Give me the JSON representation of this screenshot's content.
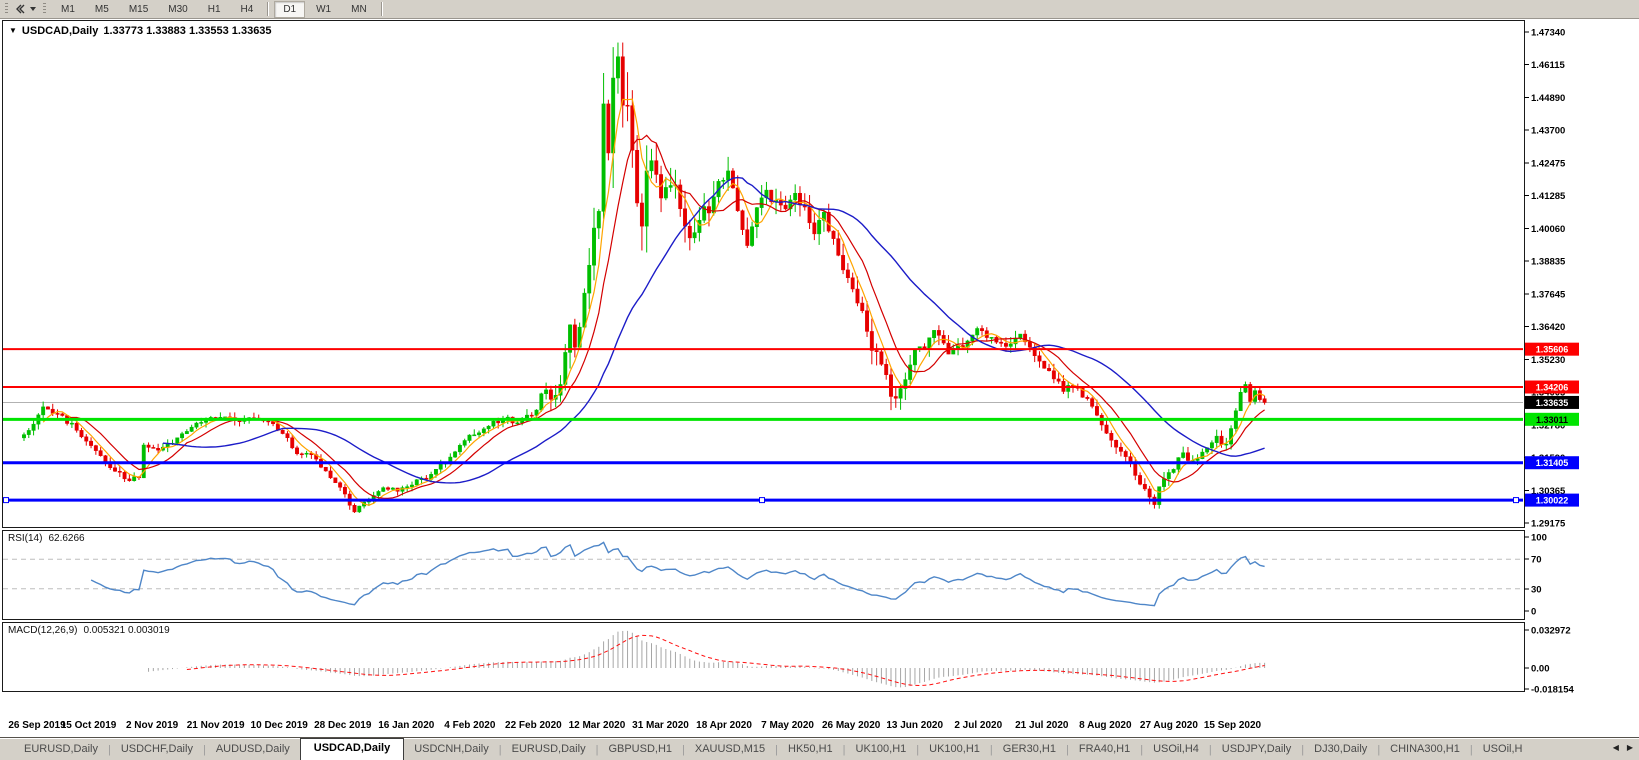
{
  "toolbar": {
    "timeframes": [
      "M1",
      "M5",
      "M15",
      "M30",
      "H1",
      "H4",
      "D1",
      "W1",
      "MN"
    ],
    "active_timeframe": "D1"
  },
  "header": {
    "symbol_label": "USDCAD,Daily",
    "ohlc_text": "1.33773 1.33883 1.33553 1.33635"
  },
  "price_axis": {
    "ticks": [
      "1.47340",
      "1.46115",
      "1.44890",
      "1.43700",
      "1.42475",
      "1.41285",
      "1.40060",
      "1.38835",
      "1.37645",
      "1.36420",
      "1.35230",
      "1.34005",
      "1.32780",
      "1.31590",
      "1.30365",
      "1.29175"
    ]
  },
  "current_price": {
    "value": 1.33635,
    "label": "1.33635",
    "line_color": "#b2b2b2",
    "badge_color": "#000000",
    "text_color": "#ffffff"
  },
  "levels": [
    {
      "label": "1.35606",
      "price": 1.35606,
      "color": "#fe0000",
      "width": 2,
      "text_color": "#ffffff",
      "selected": false
    },
    {
      "label": "1.34206",
      "price": 1.34206,
      "color": "#fe0000",
      "width": 2,
      "text_color": "#ffffff",
      "selected": false
    },
    {
      "label": "1.33011",
      "price": 1.33011,
      "color": "#00e400",
      "width": 3,
      "text_color": "#000000",
      "selected": false
    },
    {
      "label": "1.31405",
      "price": 1.31405,
      "color": "#0000fe",
      "width": 3,
      "text_color": "#ffffff",
      "selected": false
    },
    {
      "label": "1.30022",
      "price": 1.30022,
      "color": "#0000fe",
      "width": 3,
      "text_color": "#ffffff",
      "selected": true
    }
  ],
  "rsi": {
    "label": "RSI(14)",
    "value": "62.6266",
    "period": 14,
    "axis": [
      {
        "label": "100",
        "v": 100
      },
      {
        "label": "70",
        "v": 70
      },
      {
        "label": "30",
        "v": 30
      },
      {
        "label": "0",
        "v": 0
      }
    ],
    "dashed_levels": [
      70,
      30
    ],
    "line_color": "#4e86c8"
  },
  "macd": {
    "label": "MACD(12,26,9)",
    "values_text": "0.005321 0.003019",
    "fast": 12,
    "slow": 26,
    "signal": 9,
    "axis": [
      {
        "label": "0.032972",
        "v": 0.032972
      },
      {
        "label": "0.00",
        "v": 0
      },
      {
        "label": "-0.018154",
        "v": -0.018154
      }
    ],
    "hist_color": "#a6a6a6",
    "signal_color": "#ff1010"
  },
  "tabs": {
    "items": [
      "EURUSD,Daily",
      "USDCHF,Daily",
      "AUDUSD,Daily",
      "USDCAD,Daily",
      "USDCNH,Daily",
      "EURUSD,Daily",
      "GBPUSD,H1",
      "XAUUSD,M15",
      "HK50,H1",
      "UK100,H1",
      "UK100,H1",
      "GER30,H1",
      "FRA40,H1",
      "USOil,H4",
      "USDJPY,Daily",
      "DJ30,Daily",
      "CHINA300,H1",
      "USOil,H"
    ],
    "active_index": 3,
    "separator": "|",
    "scroll_left_icon": "◀",
    "scroll_right_icon": "▶"
  },
  "chart_data": {
    "type": "candlestick",
    "symbol": "USDCAD",
    "timeframe": "Daily",
    "bars": 260,
    "ylim": [
      1.29175,
      1.4734
    ],
    "last_bar": {
      "open": 1.33773,
      "high": 1.33883,
      "low": 1.33553,
      "close": 1.33635
    },
    "up_color": "#00be00",
    "down_color": "#e60000",
    "date_labels": [
      "26 Sep 2019",
      "15 Oct 2019",
      "2 Nov 2019",
      "21 Nov 2019",
      "10 Dec 2019",
      "28 Dec 2019",
      "16 Jan 2020",
      "4 Feb 2020",
      "22 Feb 2020",
      "12 Mar 2020",
      "31 Mar 2020",
      "18 Apr 2020",
      "7 May 2020",
      "26 May 2020",
      "13 Jun 2020",
      "2 Jul 2020",
      "21 Jul 2020",
      "8 Aug 2020",
      "27 Aug 2020",
      "15 Sep 2020"
    ],
    "moving_averages": [
      {
        "name": "MA-fast",
        "period": 5,
        "color": "#ffa500",
        "width": 1.2
      },
      {
        "name": "MA-mid",
        "period": 10,
        "color": "#d40000",
        "width": 1.2
      },
      {
        "name": "MA-slow",
        "period": 30,
        "color": "#1c1cc8",
        "width": 1.4
      }
    ],
    "close_anchors": [
      [
        0,
        1.324
      ],
      [
        4,
        1.334
      ],
      [
        7,
        1.332
      ],
      [
        10,
        1.328
      ],
      [
        14,
        1.32
      ],
      [
        18,
        1.313
      ],
      [
        22,
        1.3075
      ],
      [
        24,
        1.309
      ],
      [
        25,
        1.32
      ],
      [
        28,
        1.318
      ],
      [
        32,
        1.323
      ],
      [
        36,
        1.328
      ],
      [
        39,
        1.331
      ],
      [
        42,
        1.3315
      ],
      [
        45,
        1.329
      ],
      [
        48,
        1.3305
      ],
      [
        51,
        1.329
      ],
      [
        54,
        1.3255
      ],
      [
        57,
        1.3175
      ],
      [
        60,
        1.3165
      ],
      [
        63,
        1.311
      ],
      [
        66,
        1.3055
      ],
      [
        68,
        1.2985
      ],
      [
        69,
        1.2965
      ],
      [
        71,
        1.299
      ],
      [
        73,
        1.3015
      ],
      [
        75,
        1.305
      ],
      [
        78,
        1.304
      ],
      [
        81,
        1.3065
      ],
      [
        84,
        1.3085
      ],
      [
        87,
        1.313
      ],
      [
        90,
        1.318
      ],
      [
        93,
        1.3235
      ],
      [
        96,
        1.3265
      ],
      [
        99,
        1.3295
      ],
      [
        101,
        1.3305
      ],
      [
        103,
        1.329
      ],
      [
        105,
        1.331
      ],
      [
        107,
        1.333
      ],
      [
        108,
        1.3405
      ],
      [
        109,
        1.3425
      ],
      [
        110,
        1.3385
      ],
      [
        112,
        1.342
      ],
      [
        114,
        1.366
      ],
      [
        115,
        1.359
      ],
      [
        117,
        1.3755
      ],
      [
        118,
        1.386
      ],
      [
        119,
        1.399
      ],
      [
        120,
        1.4075
      ],
      [
        121,
        1.448
      ],
      [
        122,
        1.4265
      ],
      [
        123,
        1.451
      ],
      [
        124,
        1.4665
      ],
      [
        125,
        1.4435
      ],
      [
        126,
        1.444
      ],
      [
        127,
        1.433
      ],
      [
        128,
        1.406
      ],
      [
        129,
        1.401
      ],
      [
        130,
        1.419
      ],
      [
        131,
        1.429
      ],
      [
        133,
        1.4135
      ],
      [
        135,
        1.419
      ],
      [
        137,
        1.41
      ],
      [
        139,
        1.398
      ],
      [
        141,
        1.404
      ],
      [
        143,
        1.409
      ],
      [
        145,
        1.4165
      ],
      [
        147,
        1.4215
      ],
      [
        149,
        1.406
      ],
      [
        151,
        1.3965
      ],
      [
        153,
        1.408
      ],
      [
        155,
        1.4145
      ],
      [
        157,
        1.4105
      ],
      [
        159,
        1.4085
      ],
      [
        161,
        1.412
      ],
      [
        163,
        1.4075
      ],
      [
        165,
        1.399
      ],
      [
        167,
        1.406
      ],
      [
        169,
        1.396
      ],
      [
        171,
        1.386
      ],
      [
        173,
        1.378
      ],
      [
        175,
        1.369
      ],
      [
        177,
        1.357
      ],
      [
        179,
        1.3505
      ],
      [
        181,
        1.3405
      ],
      [
        182,
        1.3365
      ],
      [
        184,
        1.344
      ],
      [
        186,
        1.356
      ],
      [
        188,
        1.355
      ],
      [
        190,
        1.363
      ],
      [
        193,
        1.3545
      ],
      [
        196,
        1.358
      ],
      [
        199,
        1.364
      ],
      [
        202,
        1.36
      ],
      [
        205,
        1.3575
      ],
      [
        208,
        1.362
      ],
      [
        211,
        1.3545
      ],
      [
        214,
        1.3475
      ],
      [
        217,
        1.3415
      ],
      [
        219,
        1.3425
      ],
      [
        221,
        1.339
      ],
      [
        223,
        1.3345
      ],
      [
        225,
        1.328
      ],
      [
        227,
        1.3225
      ],
      [
        229,
        1.3175
      ],
      [
        231,
        1.3135
      ],
      [
        233,
        1.306
      ],
      [
        235,
        1.3005
      ],
      [
        236,
        1.2995
      ],
      [
        237,
        1.304
      ],
      [
        238,
        1.3075
      ],
      [
        240,
        1.3125
      ],
      [
        242,
        1.3185
      ],
      [
        243,
        1.314
      ],
      [
        245,
        1.3165
      ],
      [
        247,
        1.3195
      ],
      [
        249,
        1.323
      ],
      [
        251,
        1.3205
      ],
      [
        252,
        1.326
      ],
      [
        253,
        1.333
      ],
      [
        254,
        1.3405
      ],
      [
        255,
        1.342
      ],
      [
        256,
        1.337
      ],
      [
        257,
        1.3405
      ],
      [
        258,
        1.3365
      ],
      [
        259,
        1.33635
      ]
    ],
    "vol_anchors": [
      [
        0,
        0.0038
      ],
      [
        20,
        0.0034
      ],
      [
        40,
        0.0032
      ],
      [
        60,
        0.0034
      ],
      [
        69,
        0.0028
      ],
      [
        80,
        0.003
      ],
      [
        100,
        0.0036
      ],
      [
        108,
        0.0058
      ],
      [
        114,
        0.0105
      ],
      [
        118,
        0.0145
      ],
      [
        121,
        0.0205
      ],
      [
        124,
        0.0235
      ],
      [
        128,
        0.0185
      ],
      [
        134,
        0.0135
      ],
      [
        140,
        0.011
      ],
      [
        150,
        0.0092
      ],
      [
        160,
        0.008
      ],
      [
        170,
        0.0078
      ],
      [
        177,
        0.0088
      ],
      [
        182,
        0.0085
      ],
      [
        190,
        0.0062
      ],
      [
        200,
        0.005
      ],
      [
        210,
        0.0046
      ],
      [
        220,
        0.0044
      ],
      [
        228,
        0.0046
      ],
      [
        236,
        0.0054
      ],
      [
        242,
        0.004
      ],
      [
        248,
        0.0038
      ],
      [
        252,
        0.005
      ],
      [
        255,
        0.0058
      ],
      [
        259,
        0.0034
      ]
    ],
    "indicators": [
      {
        "name": "RSI",
        "period": 14,
        "last_value": 62.6266
      },
      {
        "name": "MACD",
        "params": [
          12,
          26,
          9
        ],
        "last_values": [
          0.005321,
          0.003019
        ]
      }
    ]
  }
}
